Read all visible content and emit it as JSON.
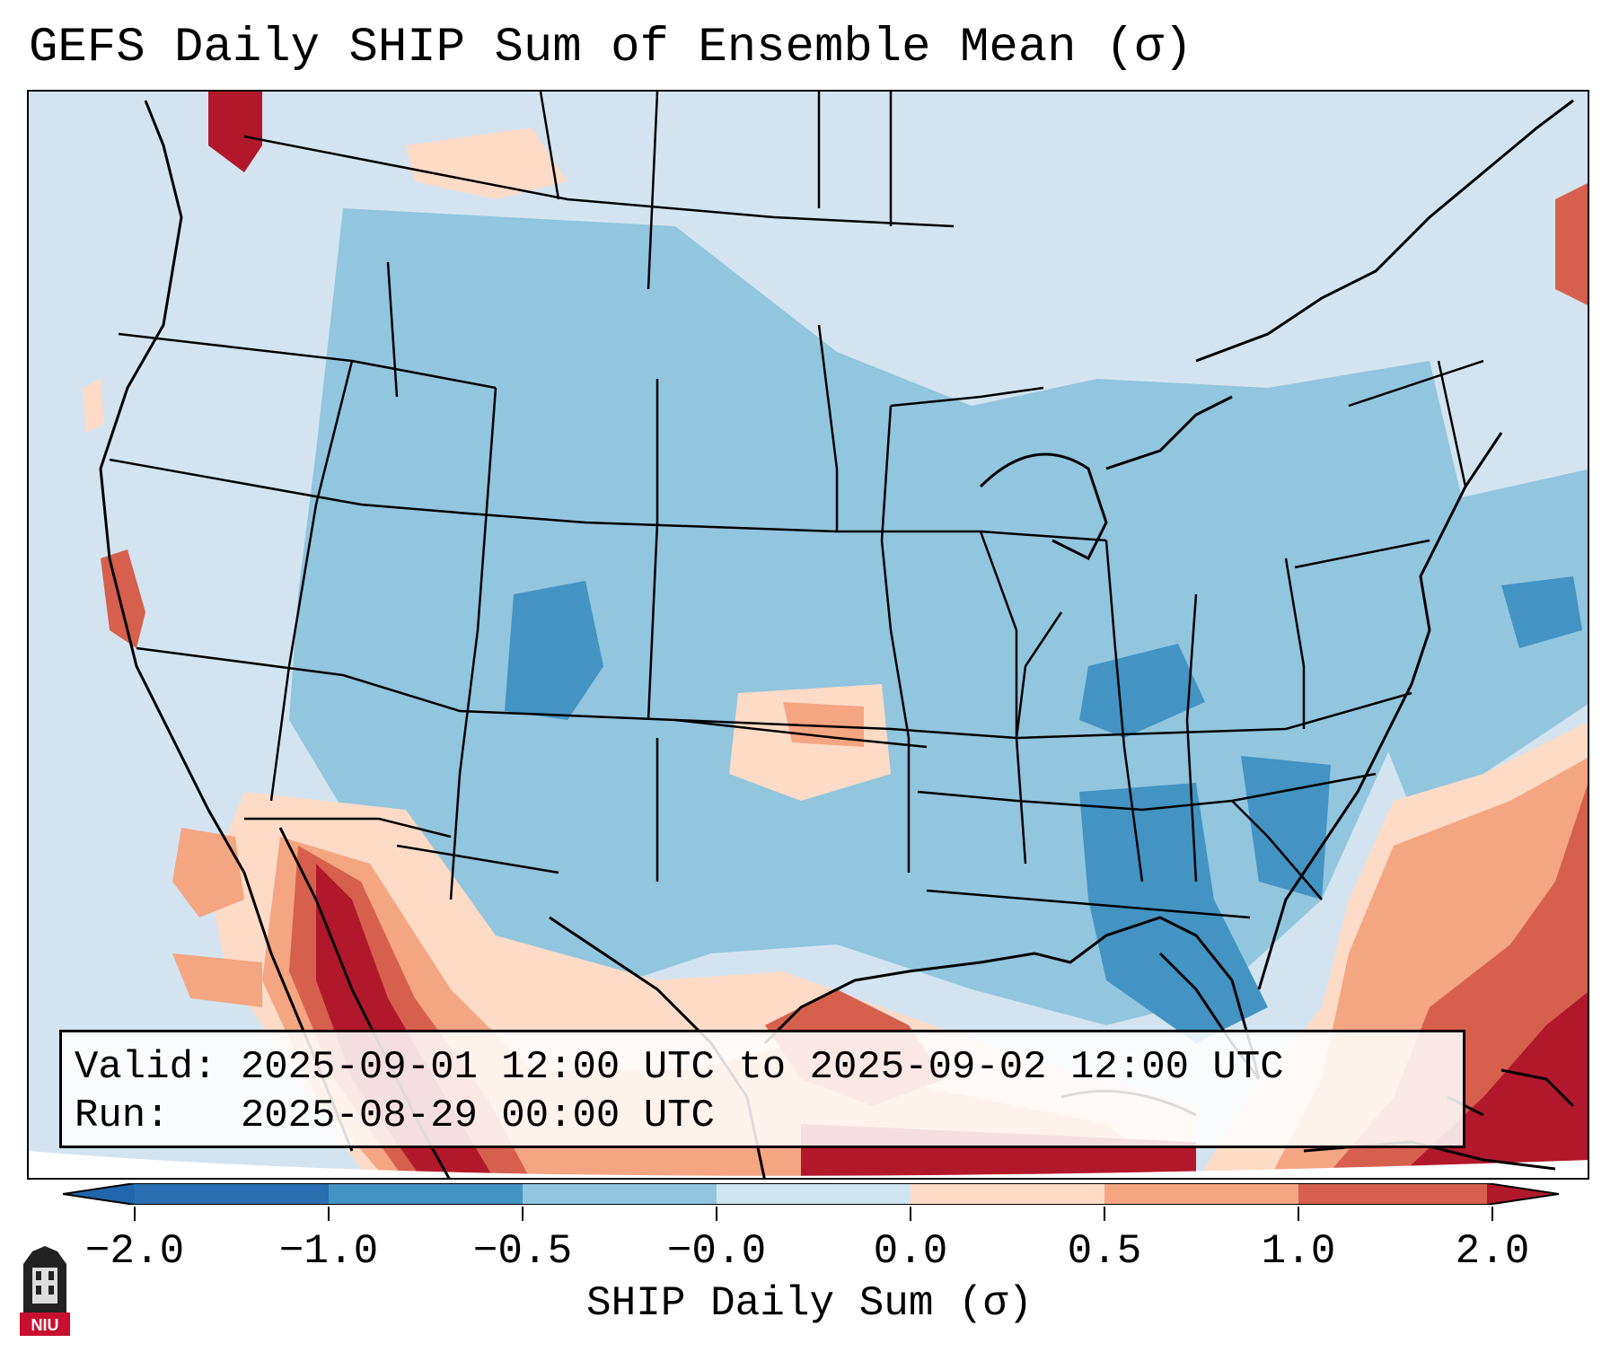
{
  "title": "GEFS Daily SHIP Sum of Ensemble Mean (σ)",
  "info": {
    "valid_label": "Valid:",
    "valid_value": "2025-09-01 12:00 UTC to 2025-09-02 12:00 UTC",
    "run_label": "Run:",
    "run_value": "2025-08-29 00:00 UTC"
  },
  "colorbar": {
    "label": "SHIP Daily Sum (σ)",
    "ticks": [
      "−2.0",
      "−1.0",
      "−0.5",
      "−0.0",
      "0.0",
      "0.5",
      "1.0",
      "2.0"
    ],
    "bin_colors": [
      "#2b6fb0",
      "#4393c3",
      "#92c5de",
      "#d1e5f0",
      "#fddbc7",
      "#f4a582",
      "#d6604d",
      "#b2182b"
    ],
    "extend_low_color": "#2166ac",
    "extend_high_color": "#b2182b"
  },
  "logo": {
    "text": "NIU",
    "color": "#c8102e"
  },
  "colors": {
    "neutral_blue": "#d1e5f0",
    "light_blue": "#92c5de",
    "mid_blue": "#4393c3",
    "deep_blue": "#2b6fb0",
    "light_red": "#fddbc7",
    "salmon": "#f4a582",
    "red": "#d6604d",
    "dark_red": "#b2182b"
  }
}
